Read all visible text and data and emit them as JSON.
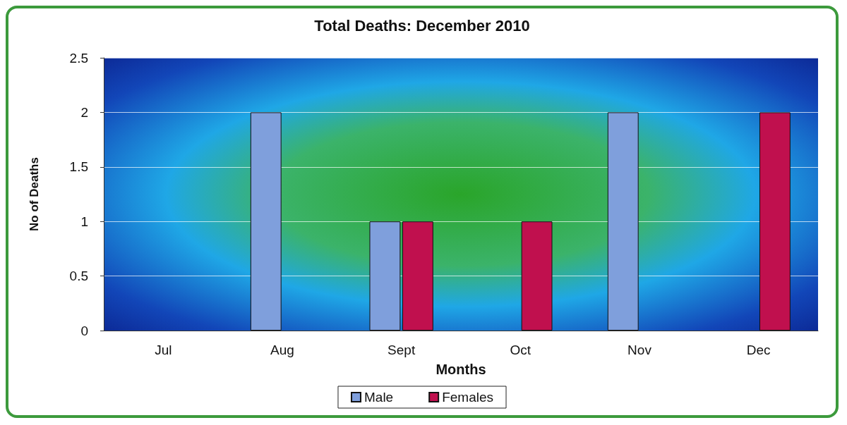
{
  "chart_data": {
    "type": "bar",
    "title": "Total Deaths: December 2010",
    "xlabel": "Months",
    "ylabel": "No of Deaths",
    "categories": [
      "Jul",
      "Aug",
      "Sept",
      "Oct",
      "Nov",
      "Dec"
    ],
    "series": [
      {
        "name": "Male",
        "color": "#7f9fdc",
        "values": [
          0,
          2,
          1,
          0,
          2,
          0
        ]
      },
      {
        "name": "Females",
        "color": "#c0104e",
        "values": [
          0,
          0,
          1,
          1,
          0,
          2
        ]
      }
    ],
    "ylim": [
      0,
      2.5
    ],
    "yticks": [
      0,
      0.5,
      1,
      1.5,
      2,
      2.5
    ],
    "grid": "y",
    "legend": "bottom"
  }
}
